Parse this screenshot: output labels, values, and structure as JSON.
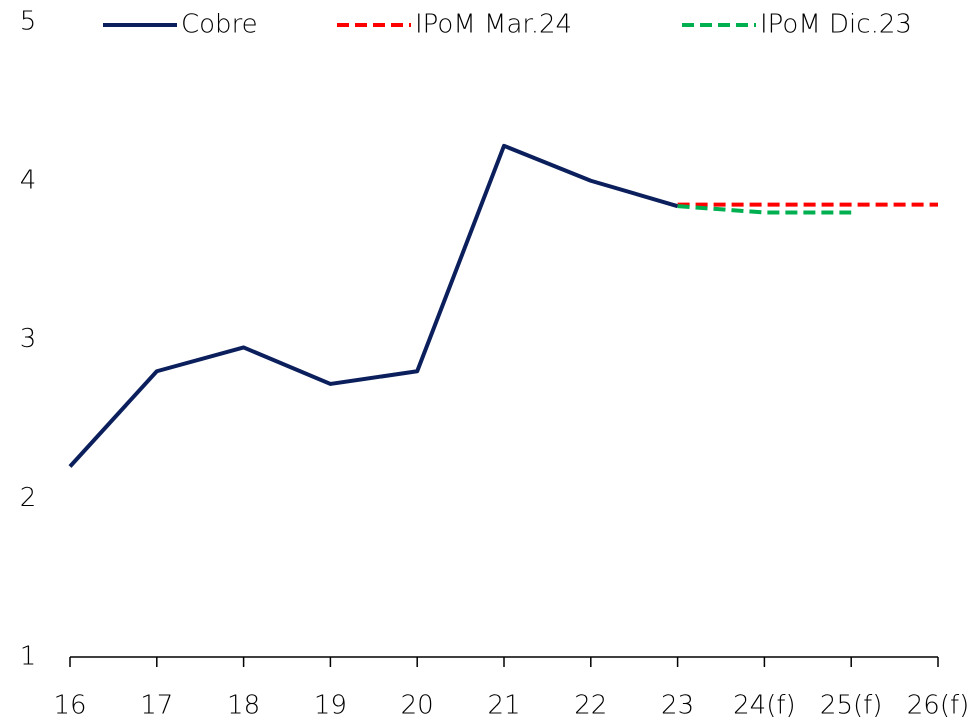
{
  "chart_data": {
    "type": "line",
    "categories": [
      "16",
      "17",
      "18",
      "19",
      "20",
      "21",
      "22",
      "23",
      "24(f)",
      "25(f)",
      "26(f)"
    ],
    "series": [
      {
        "name": "Cobre",
        "color": "#0b1f5c",
        "dash": "solid",
        "values": [
          2.2,
          2.8,
          2.95,
          2.72,
          2.8,
          4.22,
          4.0,
          3.84,
          null,
          null,
          null
        ]
      },
      {
        "name": "IPoM Mar.24",
        "color": "#ff0000",
        "dash": "dashed",
        "values": [
          null,
          null,
          null,
          null,
          null,
          null,
          null,
          3.85,
          3.85,
          3.85,
          3.85
        ]
      },
      {
        "name": "IPoM Dic.23",
        "color": "#00b050",
        "dash": "dashed",
        "values": [
          null,
          null,
          null,
          null,
          null,
          null,
          null,
          3.84,
          3.8,
          3.8,
          null
        ]
      }
    ],
    "ylim": [
      1,
      5
    ],
    "yticks": [
      1,
      2,
      3,
      4,
      5
    ],
    "grid": false,
    "legend": "top"
  }
}
